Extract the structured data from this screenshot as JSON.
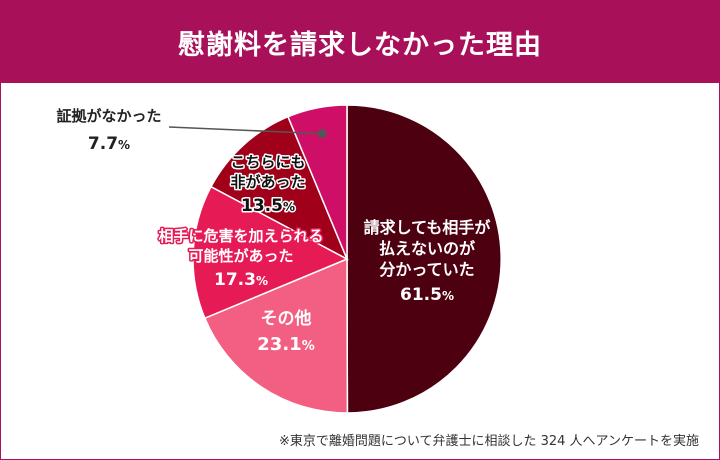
{
  "title": "慰謝料を請求しなかった理由",
  "footnote": "※東京で離婚問題について弁護士に相談した 324 人へアンケートを実施",
  "chart_data": {
    "type": "pie",
    "title": "慰謝料を請求しなかった理由",
    "start": "12 o'clock",
    "direction": "clockwise",
    "slices": [
      {
        "label": [
          "請求しても相手が",
          "払えないのが",
          "分かっていた"
        ],
        "value": 61.5,
        "display": "61.5",
        "color": "#4d0010",
        "text_color": "#ffffff",
        "label_style": "inside"
      },
      {
        "label": [
          "その他"
        ],
        "value": 23.1,
        "display": "23.1",
        "color": "#f35f82",
        "text_color": "#ffffff",
        "label_style": "inside"
      },
      {
        "label": [
          "相手に危害を加えられる",
          "可能性があった"
        ],
        "value": 17.3,
        "display": "17.3",
        "color": "#e61b56",
        "text_color": "#ffffff",
        "label_style": "inside-outlined"
      },
      {
        "label": [
          "こちらにも",
          "非があった"
        ],
        "value": 13.5,
        "display": "13.5",
        "color": "#a00019",
        "text_color": "#111111",
        "label_style": "inside-halo"
      },
      {
        "label": [
          "証拠がなかった"
        ],
        "value": 7.7,
        "display": "7.7",
        "color": "#cf0f67",
        "text_color": "#222222",
        "label_style": "callout"
      }
    ],
    "unit": "%"
  }
}
